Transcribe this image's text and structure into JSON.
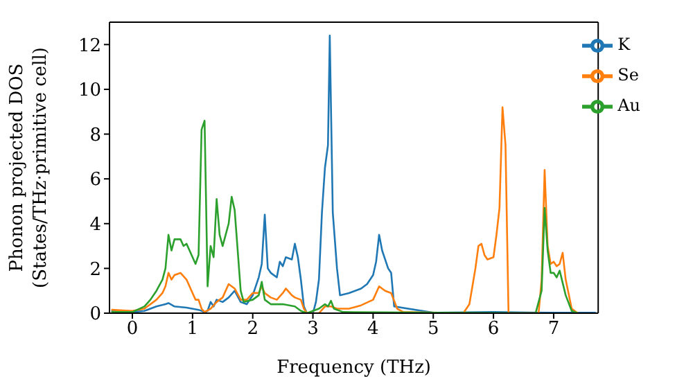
{
  "chart_data": {
    "type": "line",
    "xlabel": "Frequency (THz)",
    "ylabel": "Phonon projected DOS\n(States/THz·primitive cell)",
    "xlim": [
      -0.38,
      7.74
    ],
    "ylim": [
      0,
      13
    ],
    "xticks": [
      0,
      1,
      2,
      3,
      4,
      5,
      6,
      7
    ],
    "yticks": [
      0,
      2,
      4,
      6,
      8,
      10,
      12
    ],
    "grid": false,
    "legend": "top right",
    "marker": "none",
    "line_style": "solid",
    "series": [
      {
        "name": "K",
        "color": "#1f77b4",
        "x": [
          -0.35,
          0,
          0.2,
          0.4,
          0.55,
          0.6,
          0.7,
          0.9,
          1.1,
          1.2,
          1.25,
          1.3,
          1.35,
          1.4,
          1.5,
          1.6,
          1.7,
          1.8,
          1.9,
          2.0,
          2.1,
          2.15,
          2.2,
          2.25,
          2.3,
          2.4,
          2.45,
          2.5,
          2.55,
          2.65,
          2.7,
          2.75,
          2.8,
          2.85,
          2.9,
          3.0,
          3.05,
          3.1,
          3.15,
          3.2,
          3.25,
          3.28,
          3.33,
          3.4,
          3.45,
          3.6,
          3.8,
          3.9,
          4.0,
          4.05,
          4.1,
          4.15,
          4.25,
          4.3,
          4.35,
          5.0,
          6.0,
          7.0,
          7.7
        ],
        "values": [
          0.1,
          0.05,
          0.1,
          0.3,
          0.4,
          0.45,
          0.3,
          0.25,
          0.15,
          0.05,
          0.1,
          0.5,
          0.3,
          0.6,
          0.5,
          0.7,
          1.0,
          0.5,
          0.4,
          0.8,
          1.6,
          2.2,
          4.4,
          2.0,
          1.8,
          1.6,
          2.3,
          2.1,
          2.5,
          2.4,
          3.1,
          2.5,
          1.5,
          0.3,
          0,
          0,
          0.5,
          1.5,
          4.5,
          6.5,
          7.5,
          12.4,
          4.5,
          2.0,
          0.8,
          0.9,
          1.1,
          1.3,
          1.7,
          2.3,
          3.5,
          2.8,
          2.0,
          1.8,
          0.3,
          0.02,
          0.05,
          0.02,
          0.02
        ]
      },
      {
        "name": "Se",
        "color": "#ff7f0e",
        "x": [
          -0.35,
          0,
          0.2,
          0.4,
          0.5,
          0.55,
          0.6,
          0.65,
          0.7,
          0.8,
          0.9,
          1.0,
          1.05,
          1.1,
          1.15,
          1.2,
          1.3,
          1.4,
          1.5,
          1.6,
          1.7,
          1.8,
          1.9,
          2.0,
          2.1,
          2.15,
          2.2,
          2.3,
          2.4,
          2.5,
          2.55,
          2.65,
          2.7,
          2.8,
          2.85,
          2.9,
          3.1,
          3.2,
          3.3,
          3.4,
          3.6,
          3.8,
          4.0,
          4.1,
          4.2,
          4.3,
          4.4,
          4.5,
          5.5,
          5.6,
          5.7,
          5.75,
          5.8,
          5.85,
          5.9,
          6.0,
          6.05,
          6.1,
          6.15,
          6.2,
          6.25,
          6.75,
          6.8,
          6.85,
          6.9,
          6.95,
          7.0,
          7.05,
          7.1,
          7.15,
          7.2,
          7.3,
          7.4
        ],
        "values": [
          0.15,
          0.1,
          0.2,
          0.6,
          0.9,
          1.2,
          1.8,
          1.5,
          1.7,
          1.8,
          1.5,
          0.9,
          0.6,
          0.6,
          0.2,
          0.05,
          0.2,
          0.5,
          0.7,
          1.3,
          1.1,
          0.6,
          0.6,
          0.9,
          0.9,
          1.2,
          0.9,
          0.7,
          0.6,
          0.9,
          1.1,
          0.8,
          0.7,
          0.6,
          0.2,
          0,
          0,
          0.3,
          0.3,
          0.2,
          0.2,
          0.35,
          0.6,
          1.2,
          1.0,
          0.9,
          0.2,
          0.05,
          0,
          0.4,
          2.0,
          3.0,
          3.1,
          2.6,
          2.4,
          2.5,
          3.5,
          4.7,
          9.2,
          7.5,
          0,
          0,
          1.5,
          6.4,
          3.0,
          2.2,
          2.3,
          2.1,
          2.2,
          2.7,
          1.5,
          0.2,
          0
        ]
      },
      {
        "name": "Au",
        "color": "#2ca02c",
        "x": [
          -0.35,
          0,
          0.2,
          0.3,
          0.4,
          0.5,
          0.55,
          0.6,
          0.65,
          0.7,
          0.8,
          0.85,
          0.9,
          0.95,
          1.0,
          1.05,
          1.1,
          1.15,
          1.2,
          1.25,
          1.3,
          1.35,
          1.4,
          1.45,
          1.5,
          1.6,
          1.65,
          1.7,
          1.8,
          1.85,
          2.0,
          2.1,
          2.15,
          2.2,
          2.3,
          2.5,
          2.7,
          2.8,
          2.9,
          3.1,
          3.2,
          3.25,
          3.3,
          3.35,
          3.5,
          6.7,
          6.8,
          6.85,
          6.9,
          6.95,
          7.0,
          7.05,
          7.1,
          7.2,
          7.3,
          7.4
        ],
        "values": [
          0.05,
          0.05,
          0.3,
          0.6,
          1.0,
          1.5,
          2.0,
          3.5,
          2.8,
          3.3,
          3.3,
          3.0,
          3.1,
          2.8,
          2.5,
          2.2,
          2.6,
          8.2,
          8.6,
          1.2,
          3.0,
          2.5,
          5.1,
          3.5,
          3.0,
          4.0,
          5.2,
          4.6,
          1.0,
          0.5,
          0.6,
          0.8,
          1.4,
          0.6,
          0.4,
          0.4,
          0.3,
          0.1,
          0,
          0.2,
          0.4,
          0.3,
          0.55,
          0.2,
          0.05,
          0,
          1.0,
          4.7,
          2.8,
          1.8,
          1.8,
          1.6,
          1.9,
          0.8,
          0.1,
          0
        ]
      }
    ]
  }
}
